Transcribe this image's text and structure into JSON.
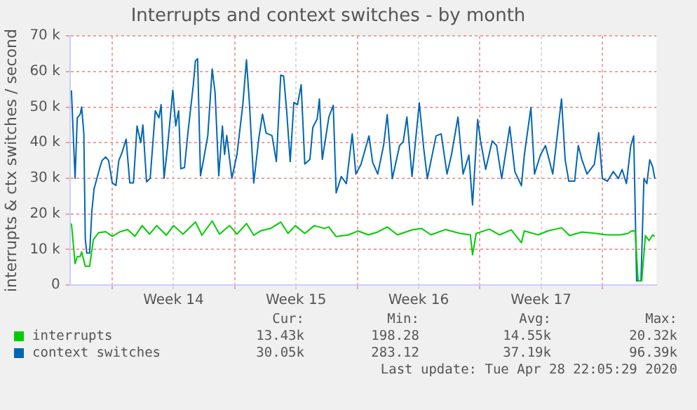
{
  "chart_data": {
    "type": "line",
    "title": "Interrupts and context switches - by month",
    "ylabel": "interrupts & ctx switches / second",
    "xlim": [
      "2020-03-27T14:00",
      "2020-04-30T02:00"
    ],
    "xticks": [
      {
        "value": "2020-03-30",
        "label": null
      },
      {
        "value": "2020-04-02T12:00",
        "label": "Week 14"
      },
      {
        "value": "2020-04-06",
        "label": null
      },
      {
        "value": "2020-04-09T12:00",
        "label": "Week 15"
      },
      {
        "value": "2020-04-13",
        "label": null
      },
      {
        "value": "2020-04-16T12:00",
        "label": "Week 16"
      },
      {
        "value": "2020-04-20",
        "label": null
      },
      {
        "value": "2020-04-23T12:00",
        "label": "Week 17"
      },
      {
        "value": "2020-04-27",
        "label": null
      }
    ],
    "ylim": [
      0,
      70000
    ],
    "yticks": [
      {
        "value": 0,
        "label": "0"
      },
      {
        "value": 10000,
        "label": "10 k"
      },
      {
        "value": 20000,
        "label": "20 k"
      },
      {
        "value": 30000,
        "label": "30 k"
      },
      {
        "value": 40000,
        "label": "40 k"
      },
      {
        "value": 50000,
        "label": "50 k"
      },
      {
        "value": 60000,
        "label": "60 k"
      },
      {
        "value": 70000,
        "label": "70 k"
      }
    ],
    "grid": true,
    "legend": "bottom",
    "marker": "none",
    "line_style": "solid",
    "series": [
      {
        "name": "interrupts",
        "color": "#00cc00",
        "x": [
          "2020-03-27T16:00",
          "2020-03-27T21:00",
          "2020-03-28T00:00",
          "2020-03-28T04:00",
          "2020-03-28T06:00",
          "2020-03-28T11:00",
          "2020-03-28T17:00",
          "2020-03-28T22:00",
          "2020-03-29T05:00",
          "2020-03-29T15:00",
          "2020-03-30T00:00",
          "2020-03-30T11:00",
          "2020-03-30T21:00",
          "2020-03-31T07:00",
          "2020-03-31T17:00",
          "2020-04-01T03:00",
          "2020-04-01T13:00",
          "2020-04-02T02:00",
          "2020-04-02T12:00",
          "2020-04-03T01:00",
          "2020-04-03T18:00",
          "2020-04-04T03:00",
          "2020-04-04T17:00",
          "2020-04-05T03:00",
          "2020-04-05T17:00",
          "2020-04-06T03:00",
          "2020-04-06T16:00",
          "2020-04-07T02:00",
          "2020-04-07T12:00",
          "2020-04-08T01:00",
          "2020-04-08T15:00",
          "2020-04-09T01:00",
          "2020-04-09T11:00",
          "2020-04-10T00:00",
          "2020-04-10T13:00",
          "2020-04-11T03:00",
          "2020-04-11T09:00",
          "2020-04-11T19:00",
          "2020-04-12T12:00",
          "2020-04-13T01:00",
          "2020-04-13T15:00",
          "2020-04-14T04:00",
          "2020-04-14T17:00",
          "2020-04-15T07:00",
          "2020-04-16T03:00",
          "2020-04-16T16:00",
          "2020-04-17T05:00",
          "2020-04-18T01:00",
          "2020-04-18T21:00",
          "2020-04-19T11:00",
          "2020-04-19T14:00",
          "2020-04-19T19:00",
          "2020-04-20T13:00",
          "2020-04-21T03:00",
          "2020-04-21T19:00",
          "2020-04-22T09:00",
          "2020-04-22T13:00",
          "2020-04-23T08:00",
          "2020-04-23T21:00",
          "2020-04-24T16:00",
          "2020-04-25T03:00",
          "2020-04-25T20:00",
          "2020-04-26T16:00",
          "2020-04-27T05:00",
          "2020-04-28T01:00",
          "2020-04-28T11:00",
          "2020-04-28T16:00",
          "2020-04-28T21:00",
          "2020-04-29T01:00",
          "2020-04-29T06:00",
          "2020-04-29T11:00",
          "2020-04-29T16:00",
          "2020-04-29T21:00",
          "2020-04-30T00:00"
        ],
        "values": [
          17300,
          6000,
          8000,
          8000,
          9300,
          5300,
          5300,
          12700,
          14700,
          15000,
          13700,
          15000,
          15600,
          13700,
          16700,
          14300,
          16700,
          14000,
          16700,
          14300,
          17700,
          14000,
          18000,
          14300,
          16700,
          14300,
          17300,
          14000,
          15300,
          15900,
          17700,
          14500,
          16700,
          14500,
          16700,
          15900,
          16300,
          13600,
          14100,
          15200,
          14100,
          14900,
          16300,
          14100,
          15500,
          15900,
          14100,
          15600,
          14500,
          14100,
          8500,
          14500,
          15700,
          14100,
          15500,
          11900,
          15200,
          14100,
          15200,
          16100,
          13900,
          14900,
          14500,
          14100,
          14100,
          14500,
          15200,
          15200,
          1200,
          1200,
          13900,
          12500,
          14100,
          13600
        ]
      },
      {
        "name": "context switches",
        "color": "#0066b3",
        "x": [
          "2020-03-27T16:00",
          "2020-03-27T21:00",
          "2020-03-28T00:00",
          "2020-03-28T04:00",
          "2020-03-28T06:00",
          "2020-03-28T09:00",
          "2020-03-28T11:00",
          "2020-03-28T13:00",
          "2020-03-28T17:00",
          "2020-03-28T20:00",
          "2020-03-28T23:00",
          "2020-03-29T03:00",
          "2020-03-29T07:00",
          "2020-03-29T10:00",
          "2020-03-29T15:00",
          "2020-03-29T19:00",
          "2020-03-30T00:00",
          "2020-03-30T05:00",
          "2020-03-30T09:00",
          "2020-03-30T13:00",
          "2020-03-30T19:00",
          "2020-03-31T00:00",
          "2020-03-31T05:00",
          "2020-03-31T10:00",
          "2020-03-31T15:00",
          "2020-03-31T18:00",
          "2020-03-31T23:00",
          "2020-04-01T04:00",
          "2020-04-01T11:00",
          "2020-04-01T16:00",
          "2020-04-01T19:00",
          "2020-04-01T23:00",
          "2020-04-02T04:00",
          "2020-04-02T11:00",
          "2020-04-02T15:00",
          "2020-04-02T19:00",
          "2020-04-02T22:00",
          "2020-04-03T03:00",
          "2020-04-03T08:00",
          "2020-04-03T15:00",
          "2020-04-03T18:00",
          "2020-04-03T21:00",
          "2020-04-04T01:00",
          "2020-04-04T05:00",
          "2020-04-04T11:00",
          "2020-04-04T17:00",
          "2020-04-04T21:00",
          "2020-04-05T02:00",
          "2020-04-05T07:00",
          "2020-04-05T10:00",
          "2020-04-05T13:00",
          "2020-04-05T20:00",
          "2020-04-06T03:00",
          "2020-04-06T11:00",
          "2020-04-06T16:00",
          "2020-04-06T20:00",
          "2020-04-07T02:00",
          "2020-04-07T09:00",
          "2020-04-07T14:00",
          "2020-04-07T19:00",
          "2020-04-08T03:00",
          "2020-04-08T09:00",
          "2020-04-08T15:00",
          "2020-04-08T19:00",
          "2020-04-08T23:00",
          "2020-04-09T04:00",
          "2020-04-09T09:00",
          "2020-04-09T14:00",
          "2020-04-09T19:00",
          "2020-04-10T00:00",
          "2020-04-10T07:00",
          "2020-04-10T11:00",
          "2020-04-10T17:00",
          "2020-04-10T20:00",
          "2020-04-11T00:00",
          "2020-04-11T09:00",
          "2020-04-11T15:00",
          "2020-04-11T19:00",
          "2020-04-12T02:00",
          "2020-04-12T09:00",
          "2020-04-12T17:00",
          "2020-04-12T22:00",
          "2020-04-13T05:00",
          "2020-04-13T16:00",
          "2020-04-13T21:00",
          "2020-04-14T04:00",
          "2020-04-14T12:00",
          "2020-04-14T17:00",
          "2020-04-15T00:00",
          "2020-04-15T10:00",
          "2020-04-15T15:00",
          "2020-04-15T20:00",
          "2020-04-16T03:00",
          "2020-04-16T13:00",
          "2020-04-16T19:00",
          "2020-04-17T00:00",
          "2020-04-17T12:00",
          "2020-04-17T19:00",
          "2020-04-18T03:00",
          "2020-04-18T09:00",
          "2020-04-18T18:00",
          "2020-04-19T01:00",
          "2020-04-19T09:00",
          "2020-04-19T14:00",
          "2020-04-19T21:00",
          "2020-04-20T01:00",
          "2020-04-20T08:00",
          "2020-04-20T17:00",
          "2020-04-20T23:00",
          "2020-04-21T06:00",
          "2020-04-21T17:00",
          "2020-04-22T00:00",
          "2020-04-22T09:00",
          "2020-04-22T13:00",
          "2020-04-22T22:00",
          "2020-04-23T03:00",
          "2020-04-23T11:00",
          "2020-04-23T18:00",
          "2020-04-24T04:00",
          "2020-04-24T16:00",
          "2020-04-24T21:00",
          "2020-04-25T02:00",
          "2020-04-25T10:00",
          "2020-04-25T15:00",
          "2020-04-25T20:00",
          "2020-04-26T03:00",
          "2020-04-26T13:00",
          "2020-04-26T19:00",
          "2020-04-27T00:00",
          "2020-04-27T07:00",
          "2020-04-27T15:00",
          "2020-04-27T22:00",
          "2020-04-28T03:00",
          "2020-04-28T09:00",
          "2020-04-28T15:00",
          "2020-04-28T19:00",
          "2020-04-28T23:00",
          "2020-04-29T05:00",
          "2020-04-29T09:00",
          "2020-04-29T13:00",
          "2020-04-29T17:00",
          "2020-04-29T21:00",
          "2020-04-30T00:00"
        ],
        "values": [
          54700,
          30000,
          47000,
          48000,
          50000,
          42700,
          13000,
          9000,
          9000,
          20700,
          27000,
          30000,
          33000,
          35000,
          36000,
          35000,
          28700,
          28000,
          35000,
          37000,
          41000,
          28700,
          28700,
          44700,
          40000,
          45000,
          29000,
          30000,
          49000,
          47000,
          50700,
          30000,
          39300,
          54700,
          44700,
          49000,
          32700,
          33000,
          43300,
          56000,
          63000,
          63600,
          30700,
          35000,
          42000,
          60700,
          54000,
          30700,
          44700,
          36700,
          42000,
          30000,
          36700,
          50700,
          63300,
          51300,
          28700,
          41300,
          48000,
          42700,
          42000,
          34700,
          59000,
          58700,
          49300,
          34700,
          51300,
          50700,
          56300,
          34000,
          35300,
          44300,
          46700,
          52300,
          35300,
          47200,
          50500,
          25900,
          30500,
          28500,
          42500,
          31200,
          33900,
          41900,
          34500,
          31200,
          39200,
          47900,
          29900,
          39200,
          40300,
          47200,
          30500,
          51200,
          38500,
          29900,
          41900,
          42500,
          31200,
          36500,
          47200,
          31200,
          36500,
          22500,
          46500,
          40500,
          32500,
          40500,
          39200,
          29900,
          44500,
          31900,
          27900,
          36500,
          49900,
          31200,
          36500,
          39200,
          31200,
          52300,
          35200,
          29200,
          29200,
          39200,
          35200,
          31200,
          33900,
          42800,
          29900,
          29200,
          31900,
          29900,
          32500,
          28500,
          39200,
          41900,
          1200,
          1200,
          29900,
          28500,
          35200,
          33200,
          29900
        ]
      }
    ],
    "annotations": [
      "Cur:",
      "Min:",
      "Avg:",
      "Max:",
      "13.43k",
      "198.28",
      "14.55k",
      "20.32k",
      "30.05k",
      "283.12",
      "37.19k",
      "96.39k",
      "Last update: Tue Apr 28 22:05:29 2020"
    ]
  }
}
